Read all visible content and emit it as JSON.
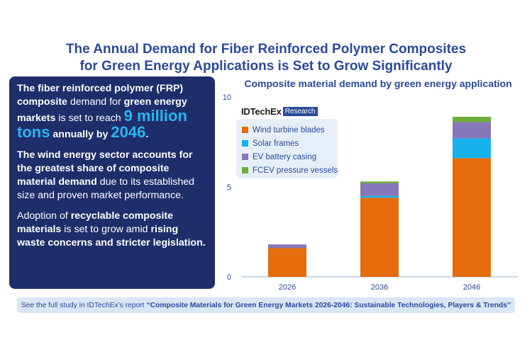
{
  "title": {
    "line1": "The Annual Demand for Fiber Reinforced Polymer Composites",
    "line2": "for Green Energy Applications is Set to Grow Significantly"
  },
  "panel": {
    "p1": {
      "a": "The fiber reinforced polymer (FRP) composite",
      "b": " demand for ",
      "c": "green energy markets",
      "d": " is set to reach ",
      "e": "9 million tons",
      "f": " annually by ",
      "g": "2046",
      "h": "."
    },
    "p2": {
      "a": "The wind energy sector accounts for the greatest share of composite material demand",
      "b": " due to its established size and proven market performance."
    },
    "p3": {
      "a": "Adoption of ",
      "b": "recyclable composite materials",
      "c": " is set to grow amid ",
      "d": "rising waste concerns and stricter legislation."
    }
  },
  "brand": {
    "name": "IDTechEx",
    "tag": "Research"
  },
  "footer": {
    "prefix": "See the full study in IDTechEx's report ",
    "report": "“Composite Materials for Green Energy Markets 2026-2046: Sustainable Technologies, Players & Trends”"
  },
  "colors": {
    "Wind turbine blades": "#e46c0a",
    "Solar frames": "#17b2ec",
    "EV battery casing": "#8677b8",
    "FCEV pressure vessels": "#6aad3a"
  },
  "chart_data": {
    "type": "bar",
    "stacked": true,
    "title": "Composite material demand by green energy application",
    "categories": [
      "2026",
      "2036",
      "2046"
    ],
    "series": [
      {
        "name": "Wind turbine blades",
        "values": [
          1.6,
          4.4,
          6.6
        ]
      },
      {
        "name": "Solar frames",
        "values": [
          0.0,
          0.1,
          1.1
        ]
      },
      {
        "name": "EV battery casing",
        "values": [
          0.2,
          0.7,
          0.9
        ]
      },
      {
        "name": "FCEV pressure vessels",
        "values": [
          0.0,
          0.1,
          0.3
        ]
      }
    ],
    "ylim": [
      0,
      10
    ],
    "yticks": [
      0,
      5,
      10
    ],
    "xlabel": "",
    "ylabel": "",
    "legend": "top-left",
    "grid": false
  }
}
